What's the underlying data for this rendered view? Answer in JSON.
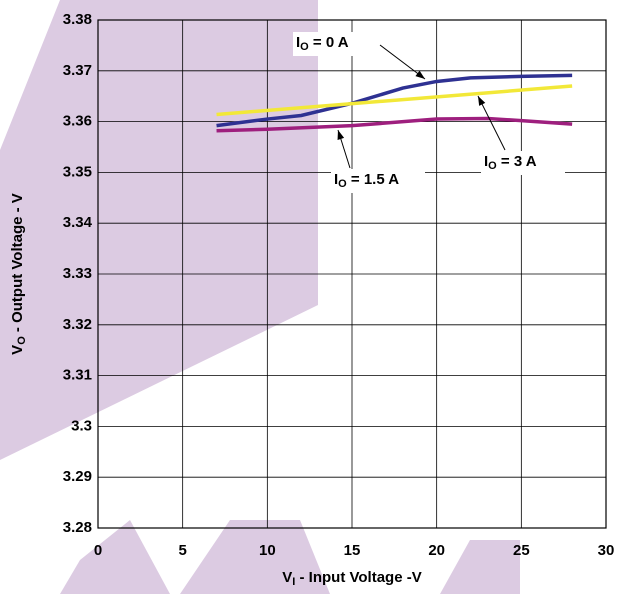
{
  "chart_data": {
    "type": "line",
    "xlabel": [
      "V",
      "I",
      " - Input Voltage -V"
    ],
    "ylabel": [
      "V",
      "O",
      " - Output Voltage - V"
    ],
    "xlim": [
      0,
      30
    ],
    "xticks": [
      0,
      5,
      10,
      15,
      20,
      25,
      30
    ],
    "ylim": [
      3.28,
      3.38
    ],
    "yticks": [
      3.28,
      3.29,
      3.3,
      3.31,
      3.32,
      3.33,
      3.34,
      3.35,
      3.36,
      3.37,
      3.38
    ],
    "grid": true,
    "series": [
      {
        "name": [
          "I",
          "O",
          " = 0 A"
        ],
        "color": "#2e3192",
        "x": [
          7,
          10,
          12,
          15,
          18,
          20,
          22,
          25,
          28
        ],
        "values": [
          3.3592,
          3.3605,
          3.3612,
          3.3636,
          3.3666,
          3.3679,
          3.3686,
          3.3689,
          3.3691
        ]
      },
      {
        "name": [
          "I",
          "O",
          " = 3 A"
        ],
        "color": "#f2e838",
        "x": [
          7,
          28
        ],
        "values": [
          3.3614,
          3.367
        ]
      },
      {
        "name": [
          "I",
          "O",
          " = 1.5 A"
        ],
        "color": "#9e1f7e",
        "x": [
          7,
          10,
          15,
          20,
          23,
          25,
          28
        ],
        "values": [
          3.3582,
          3.3585,
          3.3592,
          3.3605,
          3.3606,
          3.3602,
          3.3595
        ]
      }
    ]
  }
}
